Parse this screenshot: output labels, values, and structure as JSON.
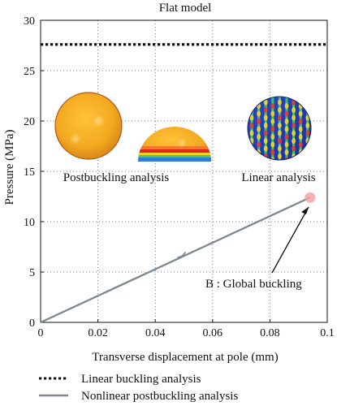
{
  "chart_data": {
    "type": "line",
    "title": "Flat model",
    "xlabel": "Transverse displacement at pole (mm)",
    "ylabel": "Pressure (MPa)",
    "xlim": [
      0,
      0.1
    ],
    "ylim": [
      0,
      30
    ],
    "xticks": [
      "0",
      "0.02",
      "0.04",
      "0.06",
      "0.08",
      "0.1"
    ],
    "yticks": [
      "0",
      "5",
      "10",
      "15",
      "20",
      "25",
      "30"
    ],
    "grid": "dotted",
    "legend_position": "below",
    "series": [
      {
        "name": "Linear buckling analysis",
        "style": "dotted",
        "color": "#111111",
        "x": [
          0,
          0.1
        ],
        "y": [
          27.6,
          27.6
        ]
      },
      {
        "name": "Nonlinear postbuckling analysis",
        "style": "solid",
        "color": "#7d8794",
        "x": [
          0,
          0.094
        ],
        "y": [
          0,
          12.4
        ]
      }
    ],
    "marker": {
      "x": 0.094,
      "y": 12.4,
      "color": "#f4a3a3"
    },
    "annotations": {
      "global_buckling": "B : Global buckling",
      "postbuckling_label": "Postbuckling analysis",
      "linear_label": "Linear analysis"
    }
  }
}
